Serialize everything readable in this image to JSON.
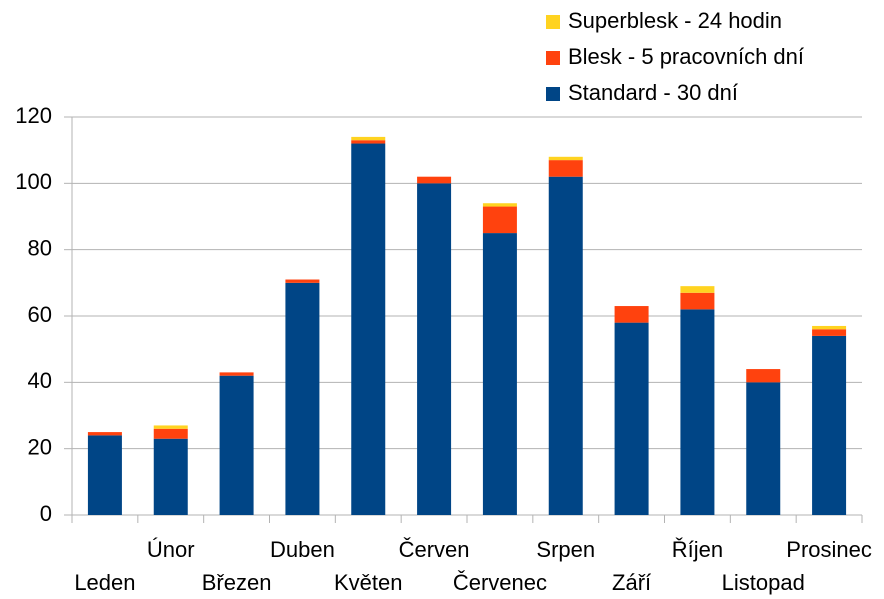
{
  "chart_data": {
    "type": "stacked_bar",
    "categories": [
      "Leden",
      "Únor",
      "Březen",
      "Duben",
      "Květen",
      "Červen",
      "Červenec",
      "Srpen",
      "Září",
      "Říjen",
      "Listopad",
      "Prosinec"
    ],
    "series": [
      {
        "name": "Standard - 30 dní",
        "color": "#004586",
        "values": [
          24,
          23,
          42,
          70,
          112,
          100,
          85,
          102,
          58,
          62,
          40,
          54
        ]
      },
      {
        "name": "Blesk - 5 pracovních dní",
        "color": "#ff420e",
        "values": [
          1,
          3,
          1,
          1,
          1,
          2,
          8,
          5,
          5,
          5,
          4,
          2
        ]
      },
      {
        "name": "Superblesk - 24 hodin",
        "color": "#ffd320",
        "values": [
          0,
          1,
          0,
          0,
          1,
          0,
          1,
          1,
          0,
          2,
          0,
          1
        ]
      }
    ],
    "ylim": [
      0,
      120
    ],
    "yticks": [
      0,
      20,
      40,
      60,
      80,
      100,
      120
    ],
    "grid": true,
    "legend": "top-right"
  }
}
